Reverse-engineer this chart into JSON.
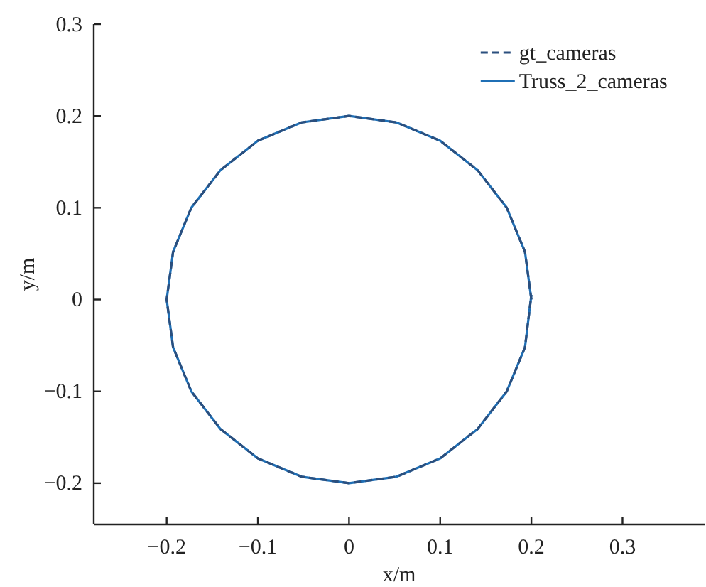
{
  "chart_data": {
    "type": "line",
    "xlabel": "x/m",
    "ylabel": "y/m",
    "xlim": [
      -0.28,
      0.39
    ],
    "xticks": [
      -0.2,
      -0.1,
      0,
      0.1,
      0.2,
      0.3
    ],
    "ylim": [
      -0.245,
      0.3
    ],
    "yticks": [
      -0.2,
      -0.1,
      0,
      0.1,
      0.2,
      0.3
    ],
    "legend": "top right",
    "grid": false,
    "series": [
      {
        "name": "gt_cameras",
        "color": "#2b4f7e",
        "line_style": "dashed",
        "x": [
          0.2,
          0.193,
          0.173,
          0.141,
          0.1,
          0.052,
          0,
          -0.052,
          -0.1,
          -0.141,
          -0.173,
          -0.193,
          -0.2,
          -0.193,
          -0.173,
          -0.141,
          -0.1,
          -0.052,
          0,
          0.052,
          0.1,
          0.141,
          0.173,
          0.193,
          0.2
        ],
        "values": [
          0,
          0.052,
          0.1,
          0.141,
          0.173,
          0.193,
          0.2,
          0.193,
          0.173,
          0.141,
          0.1,
          0.052,
          0,
          -0.052,
          -0.1,
          -0.141,
          -0.173,
          -0.193,
          -0.2,
          -0.193,
          -0.173,
          -0.141,
          -0.1,
          -0.052,
          0.005
        ]
      },
      {
        "name": "Truss_2_cameras",
        "color": "#1f6fb5",
        "line_style": "solid",
        "x": [
          0.2,
          0.193,
          0.173,
          0.141,
          0.1,
          0.052,
          0,
          -0.052,
          -0.1,
          -0.141,
          -0.173,
          -0.193,
          -0.2,
          -0.193,
          -0.173,
          -0.141,
          -0.1,
          -0.052,
          0,
          0.052,
          0.1,
          0.141,
          0.173,
          0.193,
          0.2
        ],
        "values": [
          0,
          0.052,
          0.1,
          0.141,
          0.173,
          0.193,
          0.2,
          0.193,
          0.173,
          0.141,
          0.1,
          0.052,
          0,
          -0.052,
          -0.1,
          -0.141,
          -0.173,
          -0.193,
          -0.2,
          -0.193,
          -0.173,
          -0.141,
          -0.1,
          -0.052,
          0.005
        ]
      }
    ]
  }
}
